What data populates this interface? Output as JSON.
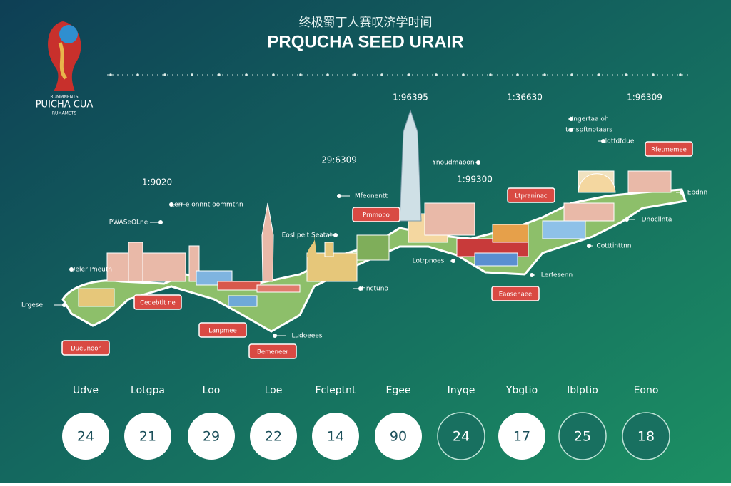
{
  "header": {
    "chinese_title": "终极蜀丁人赛叹济学时间",
    "title": "PRQUCHA SEED URAIR"
  },
  "logo": {
    "line1": "RUMMNENTS",
    "line2": "PUICHA CUA",
    "line3": "RUMAMETS"
  },
  "top_values": [
    "1:96395",
    "1:36630",
    "1:96309",
    "1:9020",
    "29:6309",
    "1:99300"
  ],
  "callouts": [
    "Ueler Pneutn",
    "Lrgese",
    "PWASeOLne",
    "Lerr e onnnt oommtnn",
    "Eosl peit Seatat",
    "Mfeonentt",
    "Hnctuno",
    "Lotrpnoes",
    "Ynoudmaoon",
    "Kngertaa oh",
    "tanspftnotaars",
    "lqtfdfdue",
    "Ebdnn",
    "Dnocllnta",
    "Cotttinttnn",
    "Lerfesenn",
    "Ludoeees"
  ],
  "tags": [
    "Dueunoor",
    "Ceqebtlt ne",
    "Lanpmee",
    "Bemeneer",
    "Prnmopo",
    "Ltpraninac",
    "Eaosenaee",
    "Rfetmemee"
  ],
  "cities": [
    "Udve",
    "Lotgpa",
    "Loo",
    "Loe",
    "Fcleptnt",
    "Egee",
    "Inyqe",
    "Ybgtio",
    "Iblptio",
    "Eono"
  ],
  "counts": [
    "24",
    "21",
    "29",
    "22",
    "14",
    "90",
    "24",
    "17",
    "25",
    "18"
  ]
}
